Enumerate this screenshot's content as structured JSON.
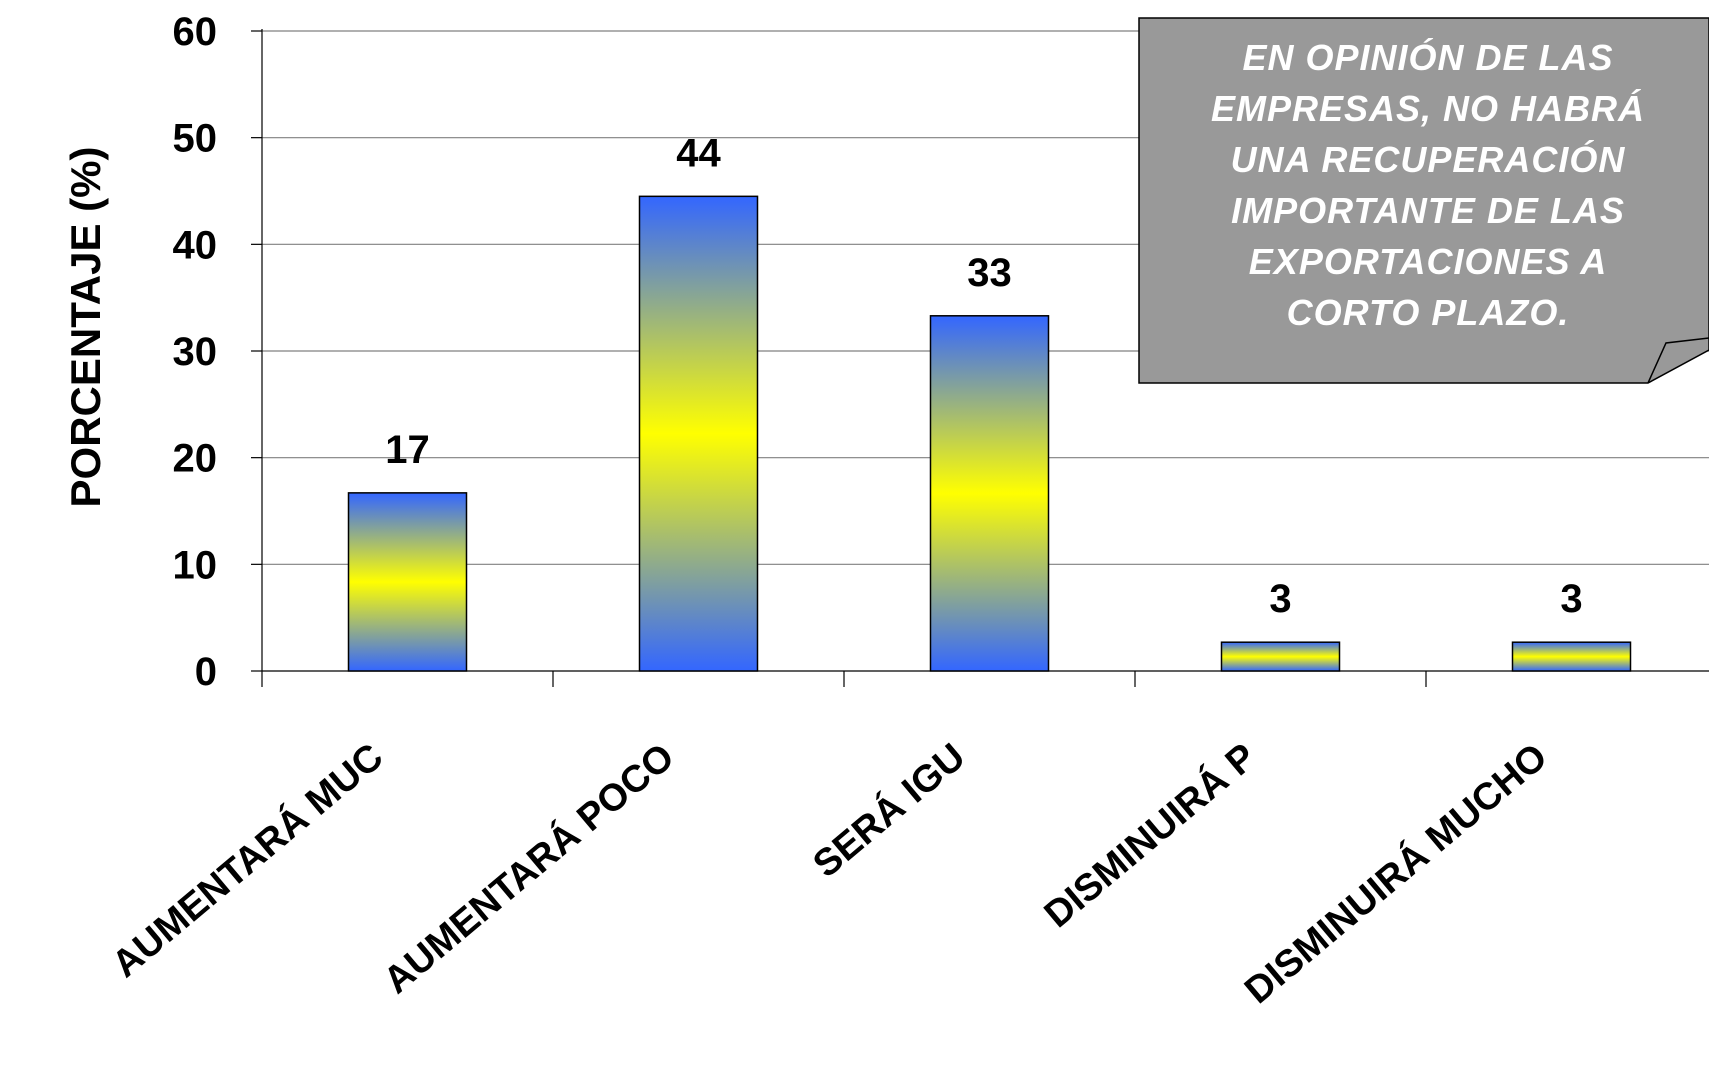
{
  "chart_data": {
    "type": "bar",
    "categories": [
      "AUMENTARÁ MUCHO",
      "AUMENTARÁ POCO",
      "SERÁ IGUAL",
      "DISMINUIRÁ POCO",
      "DISMINUIRÁ MUCHO"
    ],
    "category_display": [
      "AUMENTARÁ MUC",
      "AUMENTARÁ POCO",
      "SERÁ IGU",
      "DISMINUIRÁ P",
      "DISMINUIRÁ MUCHO"
    ],
    "values": [
      16.7,
      44.5,
      33.3,
      2.7,
      2.7
    ],
    "data_labels": [
      "17",
      "44",
      "33",
      "3",
      "3"
    ],
    "title": "",
    "xlabel": "",
    "ylabel": "PORCENTAJE (%)",
    "ylim": [
      0,
      60
    ],
    "yticks": [
      0,
      10,
      20,
      30,
      40,
      50,
      60
    ],
    "grid": true,
    "legend": "none",
    "bar_gradient": [
      "#3366ff",
      "#ffff00",
      "#3366ff"
    ],
    "annotation": {
      "lines": [
        "EN OPINIÓN DE LAS",
        "EMPRESAS, NO HABRÁ",
        "UNA RECUPERACIÓN",
        "IMPORTANTE DE LAS",
        "EXPORTACIONES A",
        "CORTO PLAZO."
      ],
      "background": "#999999",
      "text_color": "#ffffff"
    }
  }
}
